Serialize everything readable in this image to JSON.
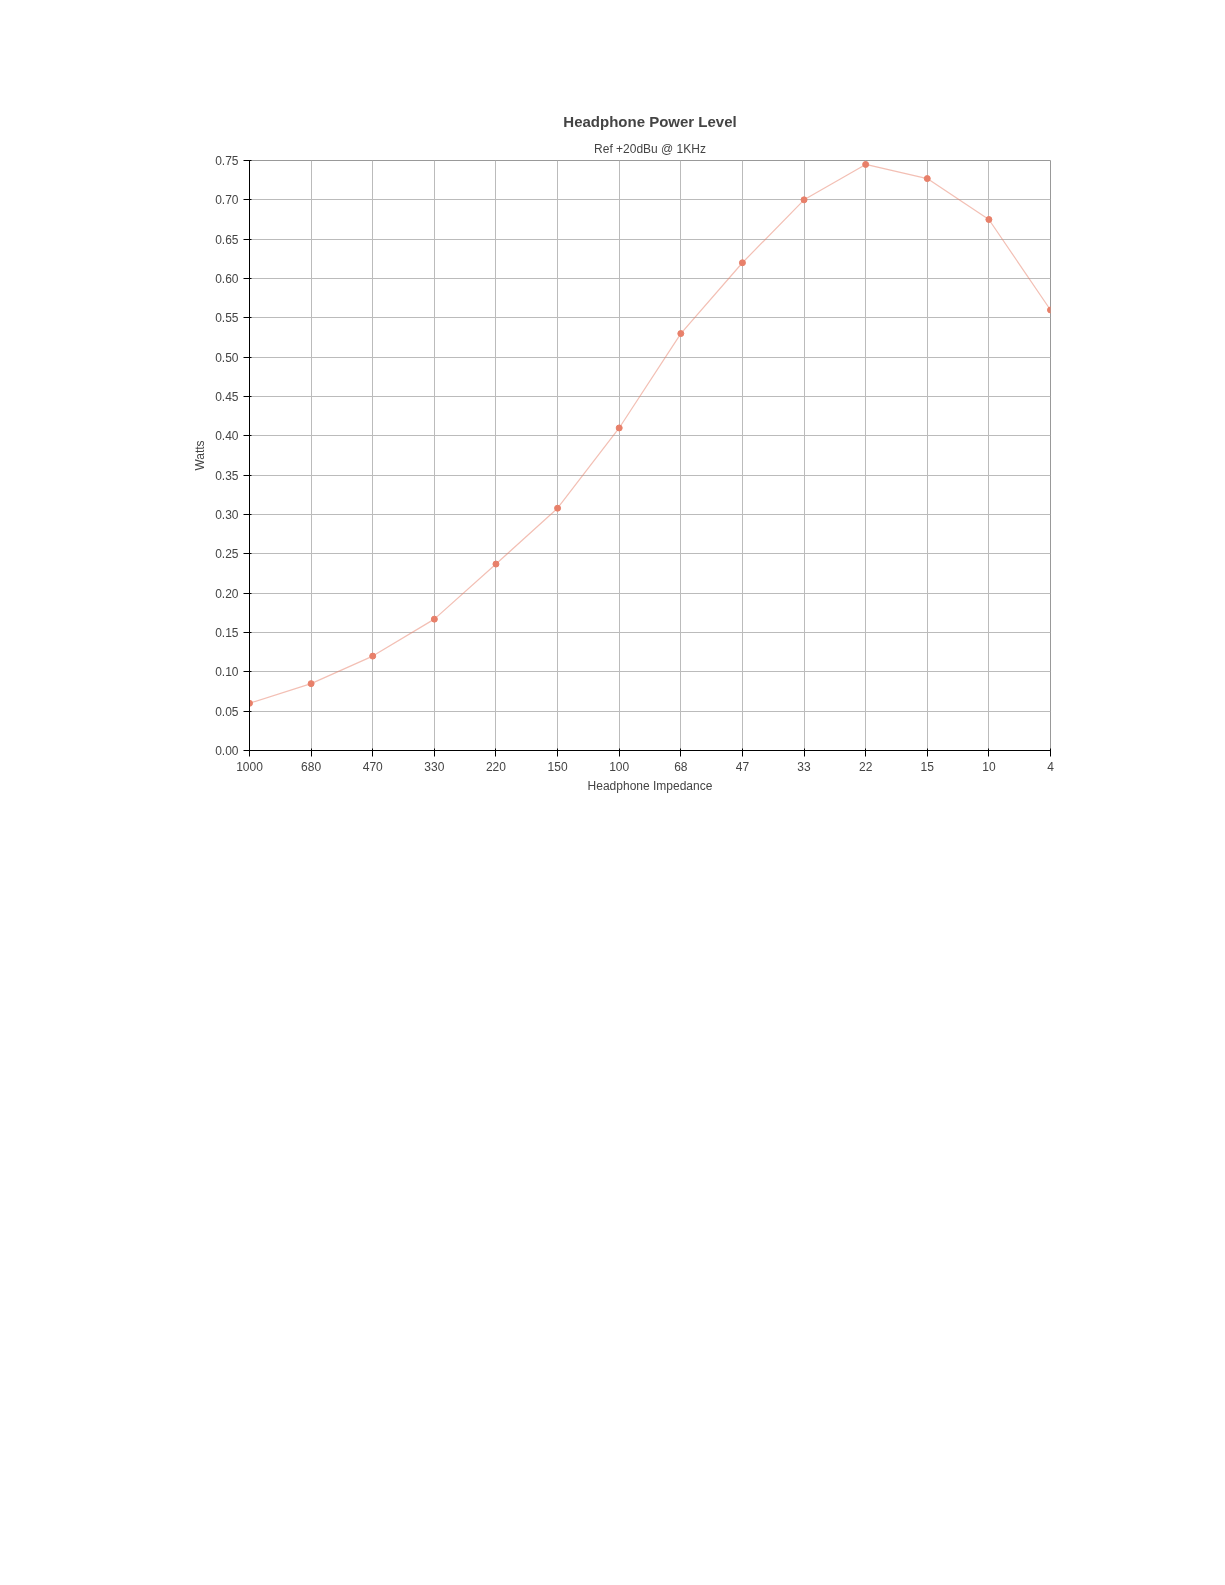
{
  "chart_data": {
    "type": "line",
    "title": "Headphone Power Level",
    "subtitle": "Ref +20dBu @ 1KHz",
    "xlabel": "Headphone Impedance",
    "ylabel": "Watts",
    "categories": [
      "1000",
      "680",
      "470",
      "330",
      "220",
      "150",
      "100",
      "68",
      "47",
      "33",
      "22",
      "15",
      "10",
      "4"
    ],
    "series": [
      {
        "color": "#e8806a",
        "values": [
          0.06,
          0.085,
          0.12,
          0.167,
          0.237,
          0.308,
          0.41,
          0.53,
          0.62,
          0.7,
          0.745,
          0.727,
          0.675,
          0.56
        ]
      }
    ],
    "ylim": [
      0,
      0.75
    ],
    "yticks": [
      {
        "value": 0,
        "label": "0.00"
      },
      {
        "value": 0.05,
        "label": "0.05"
      },
      {
        "value": 0.1,
        "label": "0.10"
      },
      {
        "value": 0.15,
        "label": "0.15"
      },
      {
        "value": 0.2,
        "label": "0.20"
      },
      {
        "value": 0.25,
        "label": "0.25"
      },
      {
        "value": 0.3,
        "label": "0.30"
      },
      {
        "value": 0.35,
        "label": "0.35"
      },
      {
        "value": 0.4,
        "label": "0.40"
      },
      {
        "value": 0.45,
        "label": "0.45"
      },
      {
        "value": 0.5,
        "label": "0.50"
      },
      {
        "value": 0.55,
        "label": "0.55"
      },
      {
        "value": 0.6,
        "label": "0.60"
      },
      {
        "value": 0.65,
        "label": "0.65"
      },
      {
        "value": 0.7,
        "label": "0.70"
      },
      {
        "value": 0.75,
        "label": "0.75"
      }
    ],
    "grid": true,
    "marker": "circle",
    "line_style": "solid"
  }
}
